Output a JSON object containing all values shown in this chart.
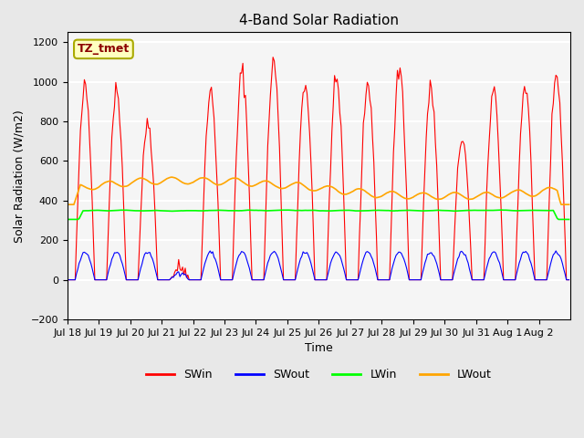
{
  "title": "4-Band Solar Radiation",
  "xlabel": "Time",
  "ylabel": "Solar Radiation (W/m2)",
  "ylim": [
    -200,
    1250
  ],
  "yticks": [
    -200,
    0,
    200,
    400,
    600,
    800,
    1000,
    1200
  ],
  "x_labels": [
    "Jul 18",
    "Jul 19",
    "Jul 20",
    "Jul 21",
    "Jul 22",
    "Jul 23",
    "Jul 24",
    "Jul 25",
    "Jul 26",
    "Jul 27",
    "Jul 28",
    "Jul 29",
    "Jul 30",
    "Jul 31",
    "Aug 1",
    "Aug 2"
  ],
  "annotation_text": "TZ_tmet",
  "annotation_box_color": "#FFFFC0",
  "annotation_text_color": "#8B0000",
  "background_color": "#E8E8E8",
  "plot_background": "#F5F5F5",
  "grid_color": "white",
  "colors": {
    "SWin": "red",
    "SWout": "blue",
    "LWin": "lime",
    "LWout": "orange"
  },
  "legend_labels": [
    "SWin",
    "SWout",
    "LWin",
    "LWout"
  ]
}
